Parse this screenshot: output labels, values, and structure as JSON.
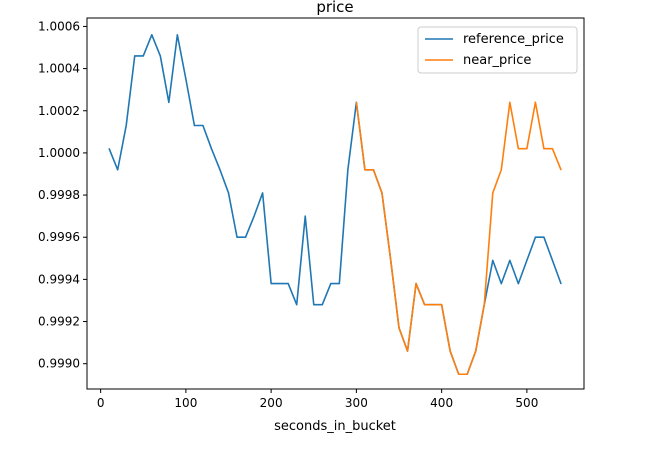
{
  "chart_data": {
    "type": "line",
    "title": "price",
    "xlabel": "seconds_in_bucket",
    "ylabel": "",
    "xlim": [
      -16,
      567
    ],
    "ylim": [
      0.99888,
      1.00064
    ],
    "xticks": [
      0,
      100,
      200,
      300,
      400,
      500
    ],
    "yticks": [
      0.999,
      0.9992,
      0.9994,
      0.9996,
      0.9998,
      1.0,
      1.0002,
      1.0004,
      1.0006
    ],
    "xtick_labels": [
      "0",
      "100",
      "200",
      "300",
      "400",
      "500"
    ],
    "ytick_labels": [
      "0.9990",
      "0.9992",
      "0.9994",
      "0.9996",
      "0.9998",
      "1.0000",
      "1.0002",
      "1.0004",
      "1.0006"
    ],
    "grid": false,
    "legend_position": "upper right",
    "series": [
      {
        "name": "reference_price",
        "color": "#1f77b4",
        "x": [
          10,
          20,
          30,
          40,
          50,
          60,
          70,
          80,
          90,
          100,
          110,
          120,
          130,
          140,
          150,
          160,
          170,
          180,
          190,
          200,
          210,
          220,
          230,
          240,
          250,
          260,
          270,
          280,
          290,
          300,
          310,
          320,
          330,
          340,
          350,
          360,
          370,
          380,
          390,
          400,
          410,
          420,
          430,
          440,
          450,
          460,
          470,
          480,
          490,
          500,
          510,
          520,
          530,
          540
        ],
        "y": [
          1.00002,
          0.99992,
          1.00013,
          1.00046,
          1.00046,
          1.00056,
          1.00046,
          1.00024,
          1.00056,
          1.00035,
          1.00013,
          1.00013,
          1.00002,
          0.99992,
          0.99981,
          0.9996,
          0.9996,
          0.9997,
          0.99981,
          0.99938,
          0.99938,
          0.99938,
          0.99928,
          0.9997,
          0.99928,
          0.99928,
          0.99938,
          0.99938,
          0.99992,
          1.00024,
          0.99992,
          0.99992,
          0.99981,
          0.9995,
          0.99917,
          0.99906,
          0.99938,
          0.99928,
          0.99928,
          0.99928,
          0.99906,
          0.99895,
          0.99895,
          0.99906,
          0.99928,
          0.99949,
          0.99938,
          0.99949,
          0.99938,
          0.99949,
          0.9996,
          0.9996,
          0.99949,
          0.99938
        ]
      },
      {
        "name": "near_price",
        "color": "#ff7f0e",
        "x": [
          300,
          310,
          320,
          330,
          340,
          350,
          360,
          370,
          380,
          390,
          400,
          410,
          420,
          430,
          440,
          450,
          460,
          470,
          480,
          490,
          500,
          510,
          520,
          530,
          540
        ],
        "y": [
          1.00024,
          0.99992,
          0.99992,
          0.99981,
          0.9995,
          0.99917,
          0.99906,
          0.99938,
          0.99928,
          0.99928,
          0.99928,
          0.99906,
          0.99895,
          0.99895,
          0.99906,
          0.99928,
          0.99981,
          0.99992,
          1.00024,
          1.00002,
          1.00002,
          1.00024,
          1.00002,
          1.00002,
          0.99992
        ]
      }
    ]
  }
}
